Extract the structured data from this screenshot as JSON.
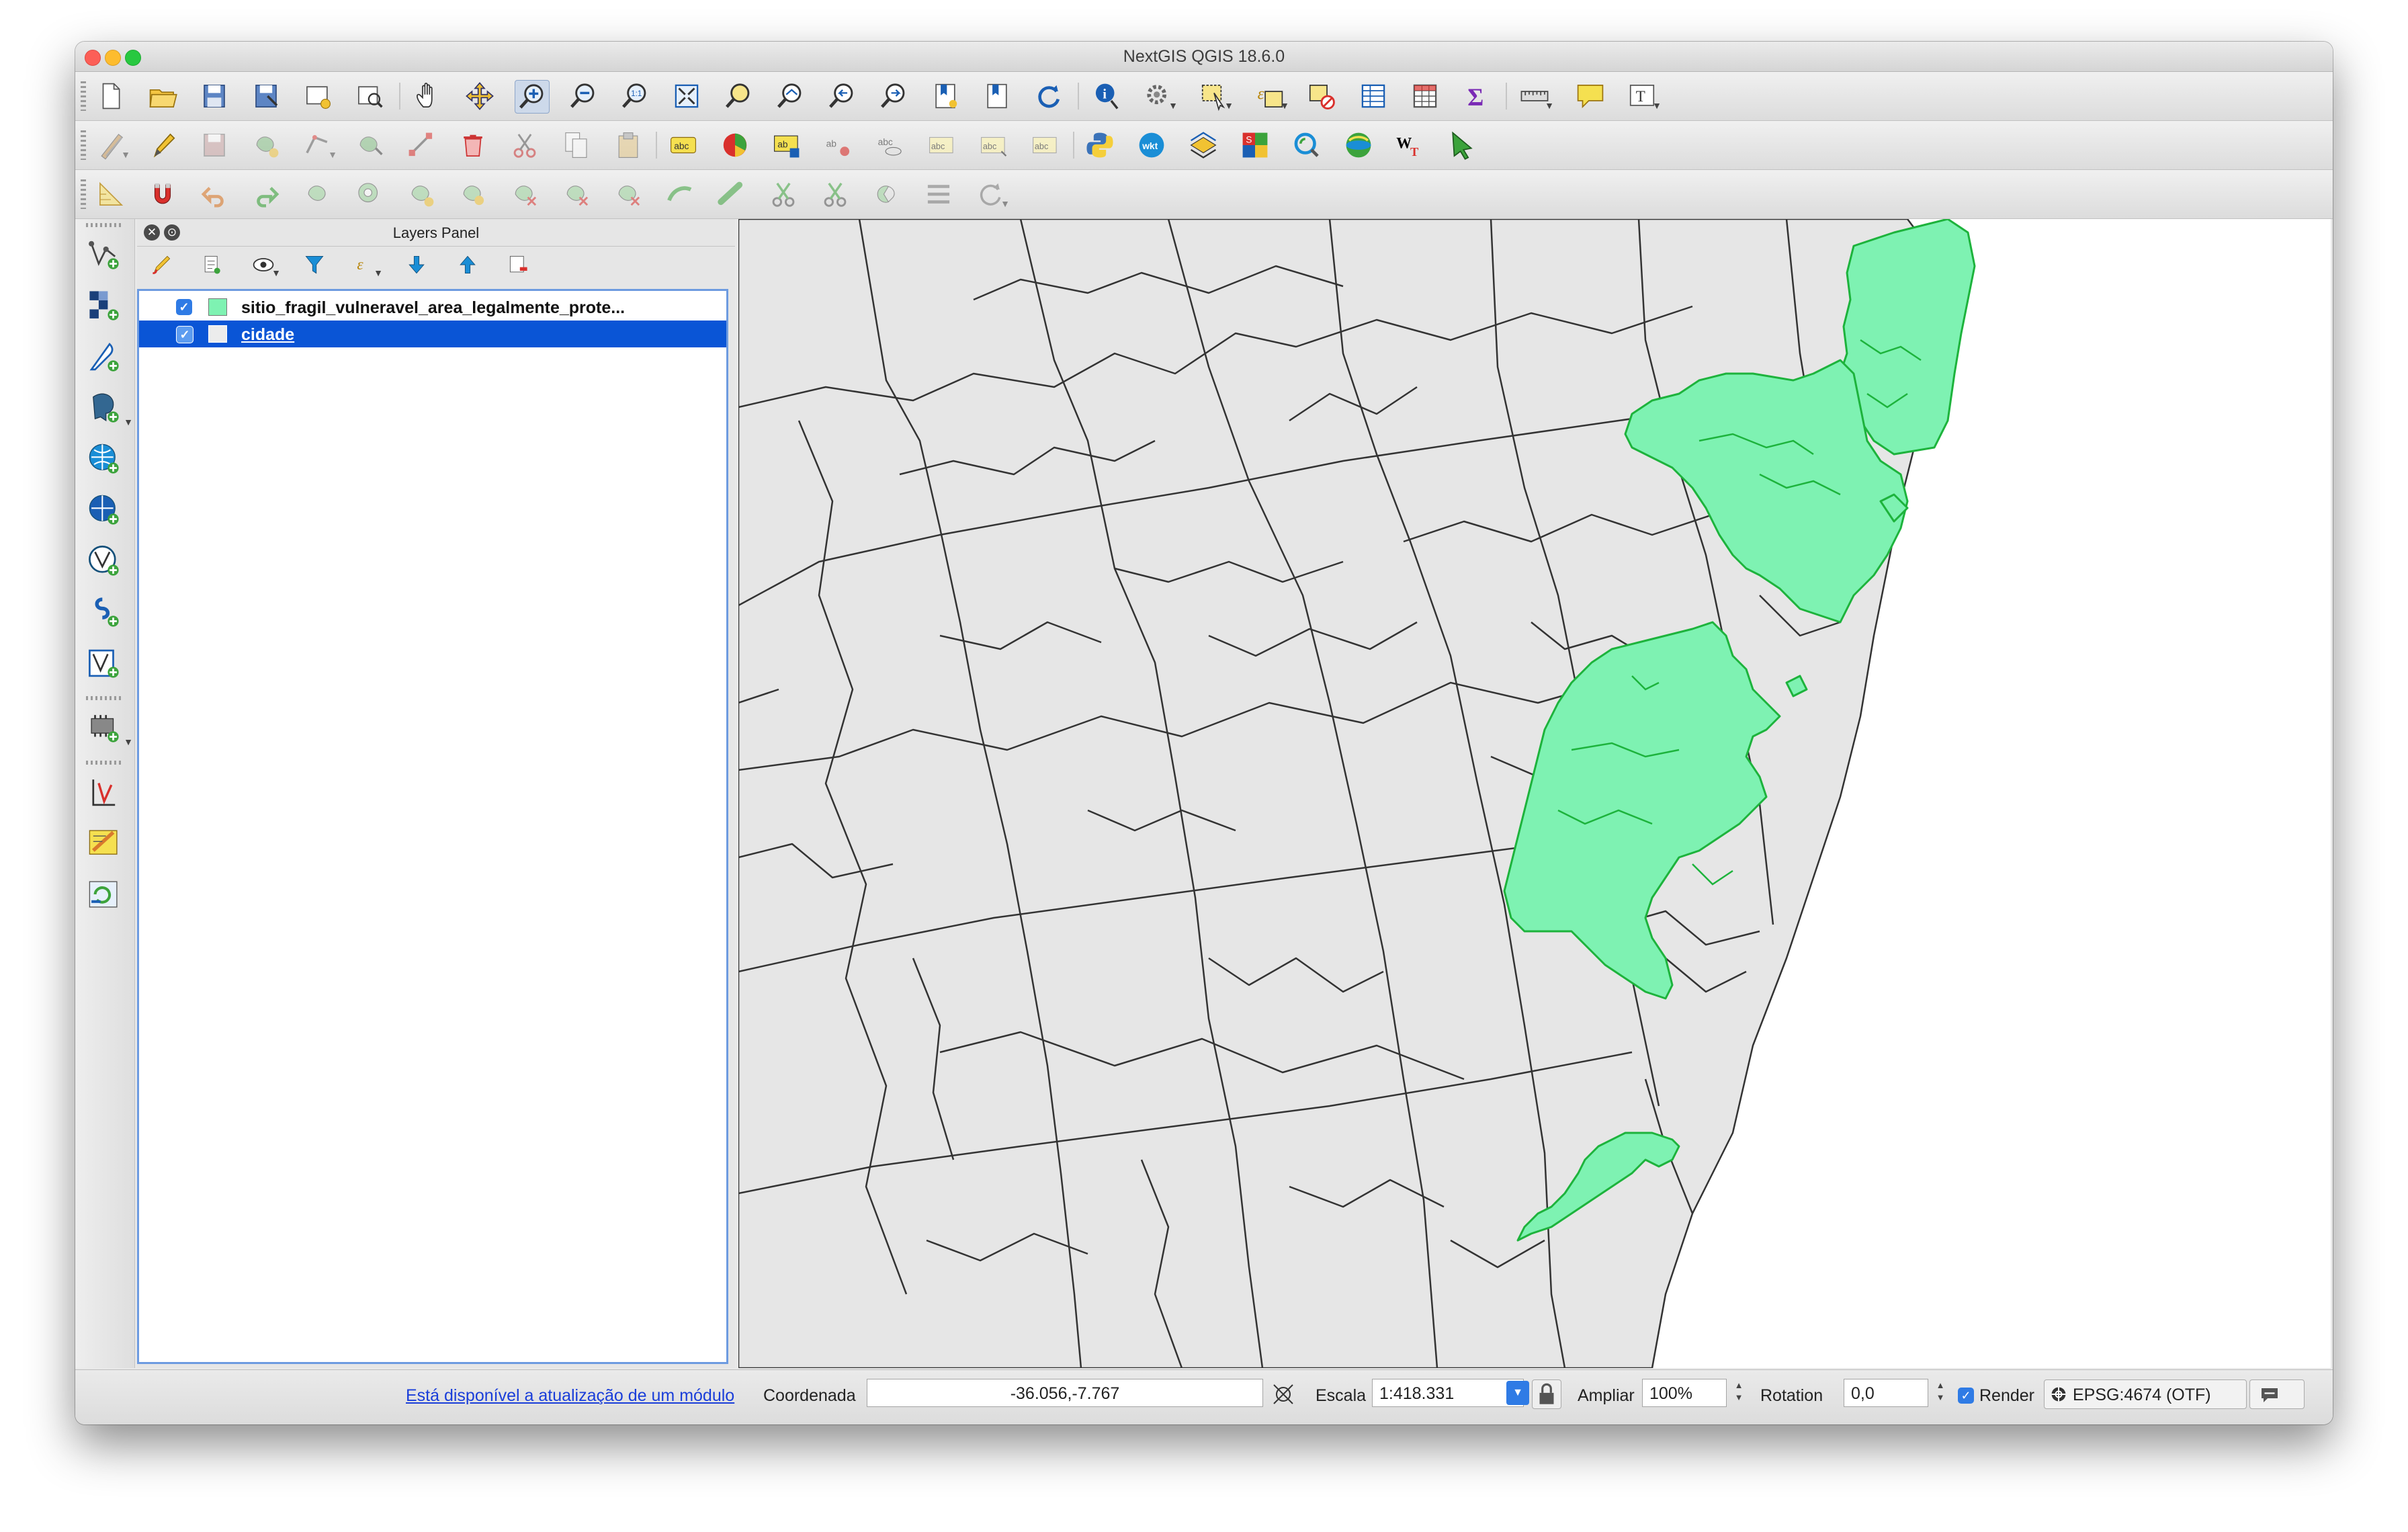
{
  "window": {
    "title": "NextGIS QGIS 18.6.0"
  },
  "toolbar_icons": {
    "row1": [
      "new-project",
      "open-project",
      "save-project",
      "save-as",
      "new-print-layout",
      "layout-manager",
      "pan-map",
      "pan-to-selection",
      "zoom-in",
      "zoom-out",
      "zoom-native",
      "zoom-full",
      "zoom-to-selection",
      "zoom-to-layer",
      "zoom-last",
      "zoom-next",
      "new-bookmark",
      "show-bookmarks",
      "refresh",
      "identify",
      "actions",
      "select-features",
      "select-by-expression",
      "deselect-all",
      "open-attribute-table",
      "field-calculator",
      "statistics",
      "measure",
      "map-tips",
      "text-annotation"
    ],
    "row2": [
      "current-edits",
      "toggle-editing",
      "save-edits",
      "add-feature",
      "digitize",
      "move-feature",
      "node-tool",
      "delete-selected",
      "cut-features",
      "copy-features",
      "paste-features",
      "label-tool",
      "diagram-tool",
      "pin-labels",
      "show-hide-labels",
      "move-label",
      "rotate-label",
      "change-label",
      "python-console",
      "quickwkt",
      "layer-styling",
      "identify-plus",
      "geocoder",
      "qgis-cloud",
      "wkt-tool",
      "pointer-tool"
    ],
    "row3": [
      "digitize-shape",
      "snapping",
      "undo",
      "redo",
      "simplify",
      "add-ring",
      "add-part",
      "fill-ring",
      "delete-ring",
      "delete-part",
      "reshape",
      "offset-curve",
      "split-features",
      "split-parts",
      "merge-attributes",
      "merge-features",
      "rotate-point",
      "align"
    ]
  },
  "layers_panel": {
    "title": "Layers Panel",
    "layers": [
      {
        "name": "sitio_fragil_vulneravel_area_legalmente_prote...",
        "checked": true,
        "swatch": "#7ef2b2",
        "selected": false
      },
      {
        "name": "cidade",
        "checked": true,
        "swatch": "#ececec",
        "selected": true
      }
    ]
  },
  "map": {
    "background": "#ffffff",
    "municipality_fill": "#e6e6e6",
    "protected_fill": "#7ef2b2",
    "protected_stroke": "#1db33c"
  },
  "statusbar": {
    "update_link": "Está disponível a atualização de um módulo",
    "coordinate_label": "Coordenada",
    "coordinate_value": "-36.056,-7.767",
    "scale_label": "Escala",
    "scale_value": "1:418.331",
    "magnify_label": "Ampliar",
    "magnify_value": "100%",
    "rotation_label": "Rotation",
    "rotation_value": "0,0",
    "render_label": "Render",
    "render_checked": true,
    "crs": "EPSG:4674 (OTF)"
  }
}
